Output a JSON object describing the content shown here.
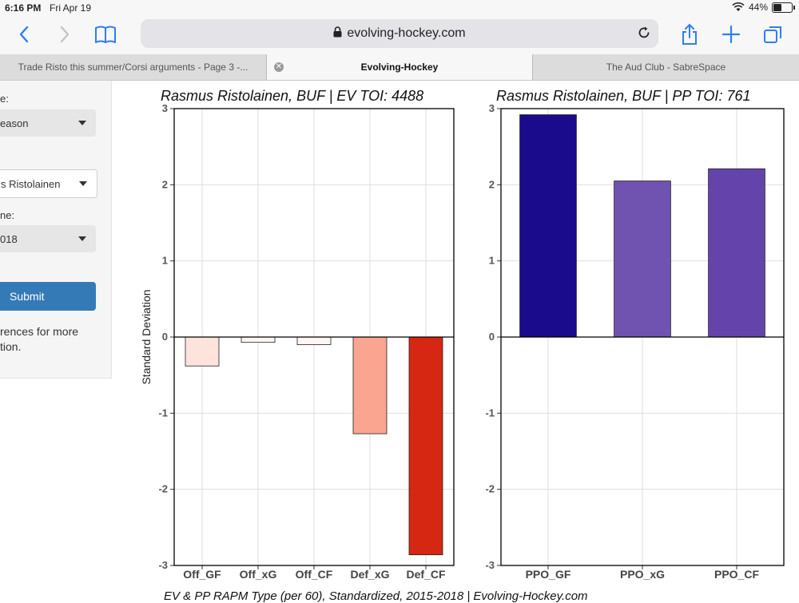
{
  "status_bar": {
    "time": "6:16 PM",
    "date": "Fri Apr 19",
    "battery": "44%"
  },
  "browser": {
    "url": "evolving-hockey.com",
    "tabs": [
      {
        "label": "Trade Risto this summer/Corsi arguments - Page 3 -..."
      },
      {
        "label": "Evolving-Hockey",
        "active": true
      },
      {
        "label": "The Aud Club - SabreSpace"
      }
    ]
  },
  "sidebar": {
    "label1": "e:",
    "select1": "eason",
    "select2": "s Ristolainen",
    "label3": "ne:",
    "select3": "018",
    "submit_label": "Submit",
    "note_line1": "rences for more",
    "note_line2": "tion."
  },
  "chart_data": [
    {
      "type": "bar",
      "title": "Rasmus Ristolainen, BUF  |  EV TOI: 4488",
      "ylabel": "Standard Deviation",
      "categories": [
        "Off_GF",
        "Off_xG",
        "Off_CF",
        "Def_xG",
        "Def_CF"
      ],
      "values": [
        -0.38,
        -0.07,
        -0.1,
        -1.27,
        -2.86
      ],
      "colors": [
        "#fde3dc",
        "#fff5f2",
        "#fff5f2",
        "#f9a58f",
        "#d52712"
      ],
      "ylim": [
        -3,
        3
      ],
      "yticks": [
        "-3",
        "-2",
        "-1",
        "0",
        "1",
        "2",
        "3"
      ],
      "grid": true
    },
    {
      "type": "bar",
      "title": "Rasmus Ristolainen, BUF  |  PP TOI: 761",
      "ylabel": "",
      "categories": [
        "PPO_GF",
        "PPO_xG",
        "PPO_CF"
      ],
      "values": [
        2.92,
        2.05,
        2.21
      ],
      "colors": [
        "#1a0a8c",
        "#7052b0",
        "#6444ab"
      ],
      "ylim": [
        -3,
        3
      ],
      "yticks": [
        "-3",
        "-2",
        "-1",
        "0",
        "1",
        "2",
        "3"
      ],
      "grid": true
    }
  ],
  "footer": "EV & PP RAPM Type (per 60), Standardized, 2015-2018   |   Evolving-Hockey.com"
}
